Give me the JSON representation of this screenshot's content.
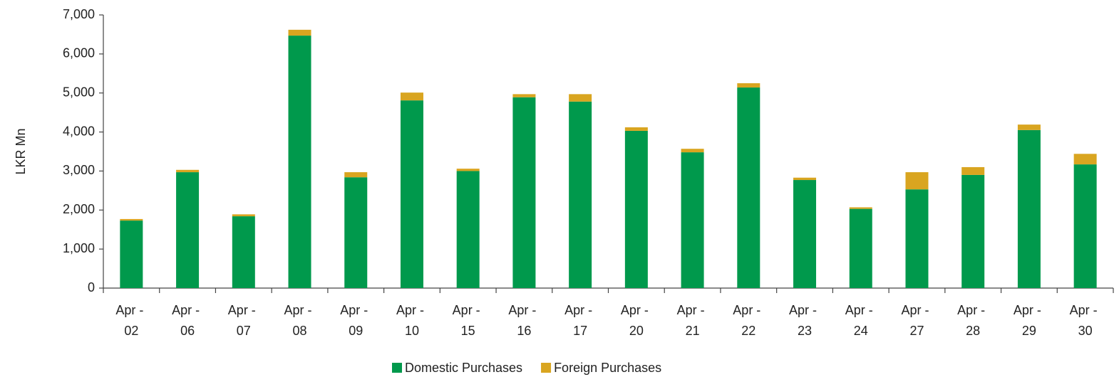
{
  "chart_data": {
    "type": "stacked_bar",
    "y_label": "LKR Mn",
    "categories": [
      "Apr - 02",
      "Apr - 06",
      "Apr - 07",
      "Apr - 08",
      "Apr - 09",
      "Apr - 10",
      "Apr - 15",
      "Apr - 16",
      "Apr - 17",
      "Apr - 20",
      "Apr - 21",
      "Apr - 22",
      "Apr - 23",
      "Apr - 24",
      "Apr - 27",
      "Apr - 28",
      "Apr - 29",
      "Apr - 30"
    ],
    "series": [
      {
        "name": "Domestic Purchases",
        "color": "#00994c",
        "values": [
          1730,
          2970,
          1840,
          6470,
          2840,
          4810,
          3000,
          4890,
          4780,
          4030,
          3480,
          5140,
          2770,
          2030,
          2530,
          2900,
          4050,
          3170
        ]
      },
      {
        "name": "Foreign Purchases",
        "color": "#d9a520",
        "values": [
          40,
          60,
          50,
          150,
          130,
          200,
          60,
          80,
          190,
          90,
          90,
          110,
          60,
          40,
          440,
          200,
          140,
          270
        ]
      }
    ],
    "ylim": [
      0,
      7000
    ],
    "yticks": [
      0,
      {
        "value": 1000,
        "label": "1,000"
      },
      {
        "value": 2000,
        "label": "2,000"
      },
      {
        "value": 3000,
        "label": "3,000"
      },
      {
        "value": 4000,
        "label": "4,000"
      },
      {
        "value": 5000,
        "label": "5,000"
      },
      {
        "value": 6000,
        "label": "6,000"
      },
      {
        "value": 7000,
        "label": "7,000"
      }
    ],
    "legend": "bottom"
  }
}
